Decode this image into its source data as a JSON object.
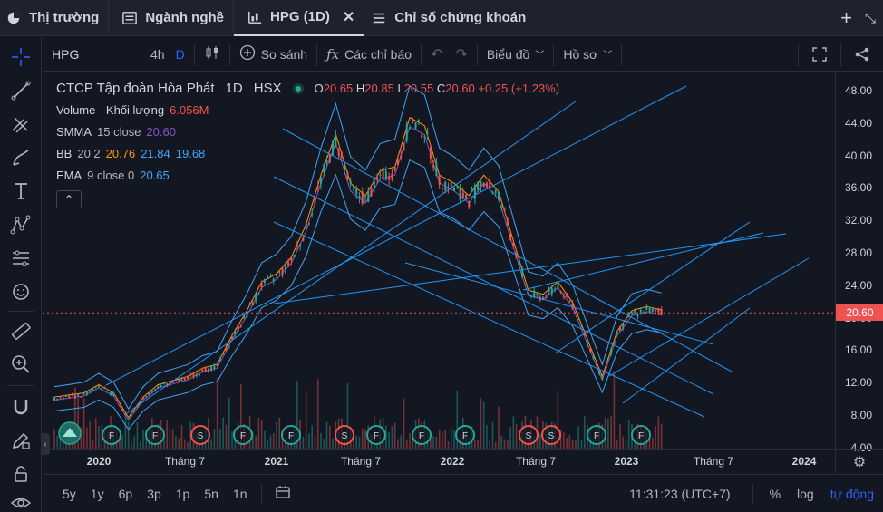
{
  "tabs": [
    {
      "label": "Thị trường",
      "icon": "pie-chart-icon",
      "active": false
    },
    {
      "label": "Ngành nghề",
      "icon": "list-icon",
      "active": false
    },
    {
      "label": "HPG (1D)",
      "icon": "candlestick-chart-icon",
      "active": true
    },
    {
      "label": "Chỉ số chứng khoán",
      "icon": "menu-icon",
      "active": false
    }
  ],
  "toolbar": {
    "symbol": "HPG",
    "interval_alt": "4h",
    "interval_active": "D",
    "compare_label": "So sánh",
    "indicators_label": "Các chỉ báo",
    "chart_type_label": "Biểu đồ",
    "profile_label": "Hồ sơ"
  },
  "legend": {
    "title": "CTCP Tập đoàn Hòa Phát",
    "interval": "1D",
    "exchange": "HSX",
    "ohlc": {
      "o_label": "O",
      "o": "20.65",
      "h_label": "H",
      "h": "20.85",
      "l_label": "L",
      "l": "20.55",
      "c_label": "C",
      "c": "20.60",
      "change": "+0.25 (+1.23%)"
    },
    "volume_label": "Volume - Khối lượng",
    "volume_value": "6.056M",
    "smma_label": "SMMA",
    "smma_params": "15 close",
    "smma_value": "20.60",
    "bb_label": "BB",
    "bb_params": "20 2",
    "bb_mid": "20.76",
    "bb_upper": "21.84",
    "bb_lower": "19.68",
    "ema_label": "EMA",
    "ema_params": "9 close 0",
    "ema_value": "20.65",
    "collapse_glyph": "⌃"
  },
  "price_axis": {
    "ticks": [
      "48.00",
      "44.00",
      "40.00",
      "36.00",
      "32.00",
      "28.00",
      "24.00",
      "20.00",
      "16.00",
      "12.00",
      "8.00",
      "4.00"
    ],
    "last_price": "20.60"
  },
  "time_axis": {
    "ticks": [
      {
        "label": "2020",
        "bold": true
      },
      {
        "label": "Tháng 7",
        "bold": false
      },
      {
        "label": "2021",
        "bold": true
      },
      {
        "label": "Tháng 7",
        "bold": false
      },
      {
        "label": "2022",
        "bold": true
      },
      {
        "label": "Tháng 7",
        "bold": false
      },
      {
        "label": "2023",
        "bold": true
      },
      {
        "label": "Tháng 7",
        "bold": false
      },
      {
        "label": "2024",
        "bold": true
      }
    ]
  },
  "bottom": {
    "ranges": [
      "5y",
      "1y",
      "6p",
      "3p",
      "1p",
      "5n",
      "1n"
    ],
    "time": "11:31:23 (UTC+7)",
    "percent_label": "%",
    "log_label": "log",
    "auto_label": "tự động"
  },
  "events": {
    "dividend_letter": "F",
    "split_letter": "S"
  },
  "colors": {
    "background": "#131722",
    "up": "#26a69a",
    "down": "#ef5350",
    "trendline": "#2196f3",
    "accent": "#2962ff"
  },
  "chart_data": {
    "type": "candlestick",
    "symbol": "HPG",
    "ylim": [
      4,
      50
    ],
    "x_range": [
      "2019-10",
      "2024-03"
    ],
    "close_path": [
      {
        "date": "2019-10",
        "close": 10.0
      },
      {
        "date": "2019-12",
        "close": 10.5
      },
      {
        "date": "2020-01",
        "close": 11.5
      },
      {
        "date": "2020-02",
        "close": 10.5
      },
      {
        "date": "2020-03",
        "close": 7.5
      },
      {
        "date": "2020-04",
        "close": 10.0
      },
      {
        "date": "2020-05",
        "close": 11.5
      },
      {
        "date": "2020-06",
        "close": 12.0
      },
      {
        "date": "2020-07",
        "close": 12.5
      },
      {
        "date": "2020-08",
        "close": 13.5
      },
      {
        "date": "2020-09",
        "close": 14.0
      },
      {
        "date": "2020-10",
        "close": 17.5
      },
      {
        "date": "2020-11",
        "close": 20.5
      },
      {
        "date": "2020-12",
        "close": 24.0
      },
      {
        "date": "2021-01",
        "close": 25.0
      },
      {
        "date": "2021-02",
        "close": 27.0
      },
      {
        "date": "2021-03",
        "close": 31.0
      },
      {
        "date": "2021-04",
        "close": 37.0
      },
      {
        "date": "2021-05",
        "close": 42.0
      },
      {
        "date": "2021-06",
        "close": 36.0
      },
      {
        "date": "2021-07",
        "close": 34.5
      },
      {
        "date": "2021-08",
        "close": 37.5
      },
      {
        "date": "2021-09",
        "close": 38.0
      },
      {
        "date": "2021-10",
        "close": 44.0
      },
      {
        "date": "2021-11",
        "close": 43.0
      },
      {
        "date": "2021-12",
        "close": 37.0
      },
      {
        "date": "2022-01",
        "close": 36.0
      },
      {
        "date": "2022-02",
        "close": 34.5
      },
      {
        "date": "2022-03",
        "close": 37.0
      },
      {
        "date": "2022-04",
        "close": 35.0
      },
      {
        "date": "2022-05",
        "close": 29.0
      },
      {
        "date": "2022-06",
        "close": 23.0
      },
      {
        "date": "2022-07",
        "close": 22.5
      },
      {
        "date": "2022-08",
        "close": 24.0
      },
      {
        "date": "2022-09",
        "close": 21.5
      },
      {
        "date": "2022-10",
        "close": 17.0
      },
      {
        "date": "2022-11",
        "close": 12.5
      },
      {
        "date": "2022-12",
        "close": 18.0
      },
      {
        "date": "2023-01",
        "close": 20.5
      },
      {
        "date": "2023-02",
        "close": 21.0
      },
      {
        "date": "2023-03",
        "close": 20.6
      }
    ]
  }
}
